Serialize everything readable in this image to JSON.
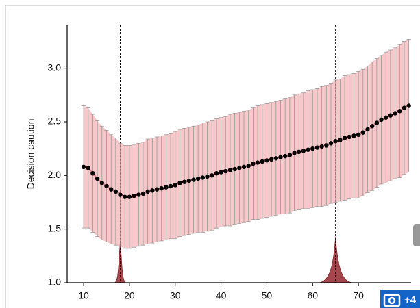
{
  "chart_data": {
    "type": "line",
    "y_label": "Decision caution",
    "xlim": [
      6.4,
      81.5
    ],
    "ylim": [
      1.0,
      3.4
    ],
    "xticks": [
      10,
      20,
      30,
      40,
      50,
      60,
      70
    ],
    "yticks": [
      {
        "value": 1.0,
        "label": "1.0"
      },
      1.5,
      {
        "value": 2.0,
        "label": "2.0"
      },
      2.5,
      {
        "value": 3.0,
        "label": "3.0"
      }
    ],
    "x": [
      10,
      11,
      12,
      13,
      14,
      15,
      16,
      17,
      18,
      19,
      20,
      21,
      22,
      23,
      24,
      25,
      26,
      27,
      28,
      29,
      30,
      31,
      32,
      33,
      34,
      35,
      36,
      37,
      38,
      39,
      40,
      41,
      42,
      43,
      44,
      45,
      46,
      47,
      48,
      49,
      50,
      51,
      52,
      53,
      54,
      55,
      56,
      57,
      58,
      59,
      60,
      61,
      62,
      63,
      64,
      65,
      66,
      67,
      68,
      69,
      70,
      71,
      72,
      73,
      74,
      75,
      76,
      77,
      78,
      79,
      80,
      81
    ],
    "series": [
      {
        "color": "#000000",
        "band_color": "#f4b6b8",
        "fit_color": "#d9868a",
        "values": [
          2.08,
          2.07,
          2.02,
          1.97,
          1.93,
          1.9,
          1.87,
          1.85,
          1.82,
          1.8,
          1.8,
          1.81,
          1.82,
          1.83,
          1.85,
          1.86,
          1.87,
          1.88,
          1.89,
          1.9,
          1.91,
          1.93,
          1.94,
          1.95,
          1.96,
          1.97,
          1.98,
          1.99,
          2.0,
          2.02,
          2.03,
          2.04,
          2.05,
          2.06,
          2.07,
          2.08,
          2.09,
          2.11,
          2.12,
          2.13,
          2.14,
          2.15,
          2.16,
          2.17,
          2.18,
          2.19,
          2.21,
          2.22,
          2.23,
          2.24,
          2.25,
          2.26,
          2.27,
          2.28,
          2.3,
          2.32,
          2.33,
          2.35,
          2.36,
          2.37,
          2.38,
          2.4,
          2.43,
          2.46,
          2.49,
          2.52,
          2.54,
          2.56,
          2.58,
          2.6,
          2.63,
          2.65
        ],
        "errors": [
          0.57,
          0.56,
          0.55,
          0.54,
          0.53,
          0.52,
          0.51,
          0.5,
          0.48,
          0.48,
          0.48,
          0.48,
          0.48,
          0.48,
          0.49,
          0.49,
          0.49,
          0.49,
          0.49,
          0.49,
          0.5,
          0.5,
          0.5,
          0.5,
          0.5,
          0.5,
          0.51,
          0.51,
          0.51,
          0.51,
          0.51,
          0.51,
          0.52,
          0.52,
          0.52,
          0.52,
          0.52,
          0.52,
          0.53,
          0.53,
          0.53,
          0.53,
          0.53,
          0.53,
          0.54,
          0.54,
          0.54,
          0.54,
          0.54,
          0.55,
          0.55,
          0.55,
          0.56,
          0.56,
          0.56,
          0.57,
          0.57,
          0.58,
          0.58,
          0.58,
          0.59,
          0.59,
          0.59,
          0.6,
          0.6,
          0.6,
          0.61,
          0.61,
          0.61,
          0.62,
          0.62,
          0.62
        ]
      }
    ],
    "breakpoints": [
      {
        "x": 18,
        "peak": 1.39
      },
      {
        "x": 65,
        "peak": 1.43
      }
    ],
    "peak_color": "#a5464c"
  },
  "overlay": {
    "badge": "+4"
  }
}
